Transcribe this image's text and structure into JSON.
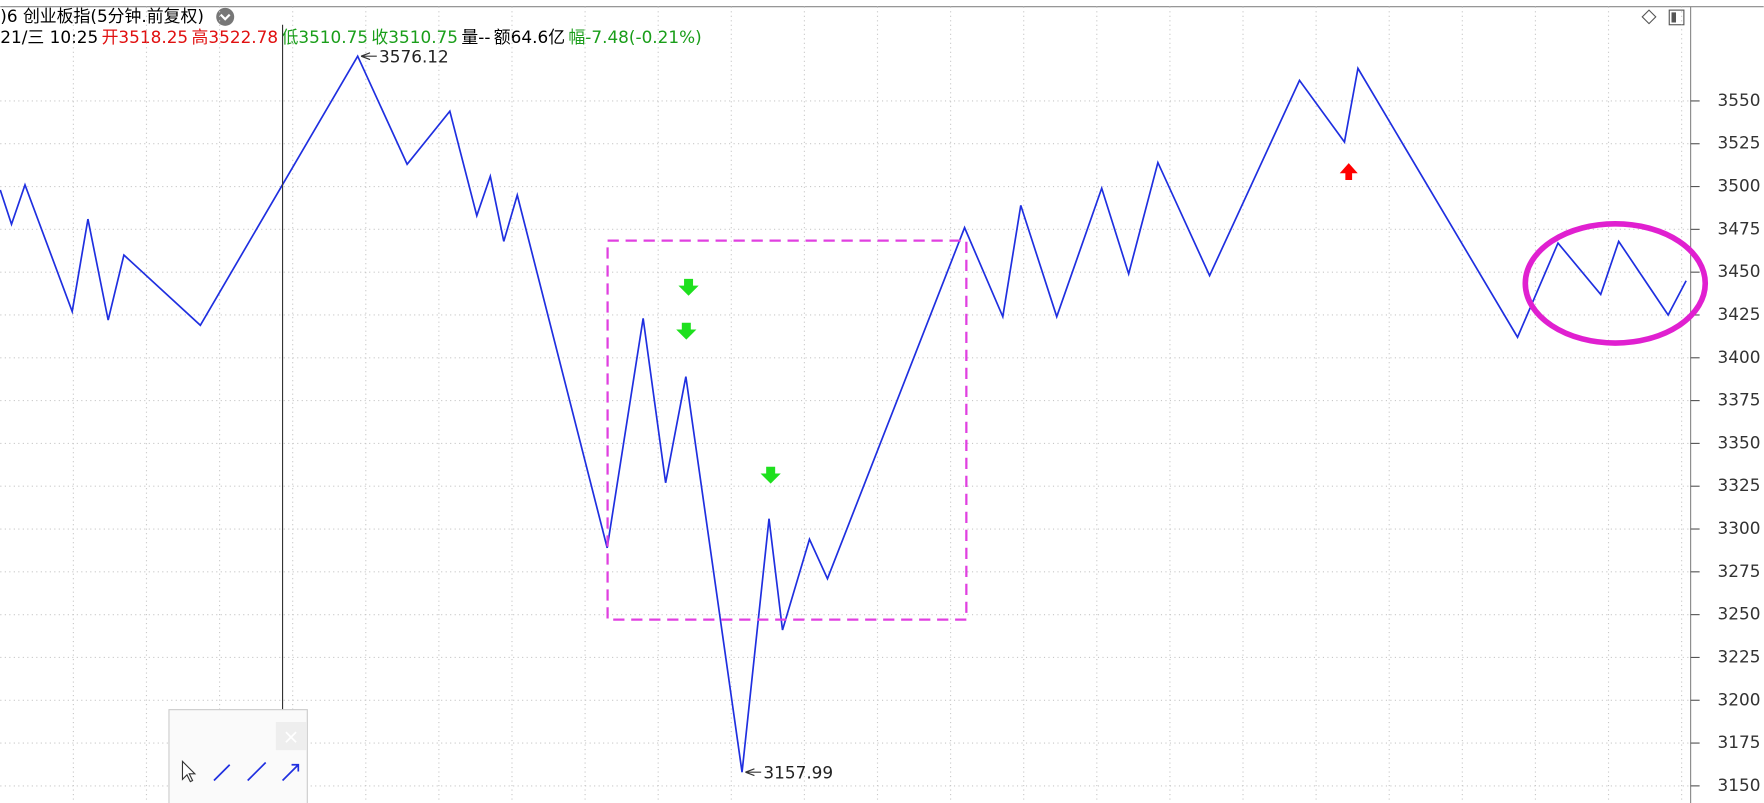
{
  "header": {
    "title": ")6 创业板指(5分钟.前复权)",
    "quote": [
      {
        "text": "21/三 10:25",
        "color": "#000000"
      },
      {
        "text": "开3518.25",
        "color": "#e01010"
      },
      {
        "text": "高3522.78",
        "color": "#e01010"
      },
      {
        "text": "低3510.75",
        "color": "#1a9e1a"
      },
      {
        "text": "收3510.75",
        "color": "#1a9e1a"
      },
      {
        "text": "量--",
        "color": "#000000"
      },
      {
        "text": "额64.6亿",
        "color": "#000000"
      },
      {
        "text": "幅-7.48(-0.21%)",
        "color": "#1a9e1a"
      }
    ]
  },
  "chart_data": {
    "type": "line",
    "x": [
      0,
      2.5,
      5.5,
      16,
      19.5,
      24,
      27.5,
      44.5,
      79.5,
      90.5,
      100,
      106,
      109,
      112,
      115,
      135,
      143,
      148,
      152.5,
      165,
      171,
      174,
      180,
      184,
      214.5,
      223,
      227,
      235,
      245,
      251,
      257.5,
      269,
      289,
      299,
      302,
      337.5,
      346.5,
      356,
      360,
      371,
      375
    ],
    "series": [
      {
        "color": "#1f2fe0",
        "values": [
          3498,
          3478,
          3501,
          3427,
          3481,
          3422,
          3460,
          3419,
          3576.12,
          3513,
          3544,
          3483,
          3506,
          3468,
          3495,
          3289,
          3423,
          3327,
          3389,
          3157.99,
          3306,
          3241,
          3294,
          3271,
          3476,
          3424,
          3489,
          3424,
          3499,
          3449,
          3514,
          3448,
          3562,
          3526,
          3569,
          3412,
          3467,
          3437,
          3468,
          3425,
          3445
        ]
      }
    ],
    "annotated_points": [
      8,
      19
    ],
    "xlim": [
      0,
      376
    ],
    "ylim": [
      3140,
      3605
    ],
    "yticks": [
      3150,
      3175,
      3200,
      3225,
      3250,
      3275,
      3300,
      3325,
      3350,
      3375,
      3400,
      3425,
      3450,
      3475,
      3500,
      3525,
      3550
    ],
    "grid": true
  }
}
